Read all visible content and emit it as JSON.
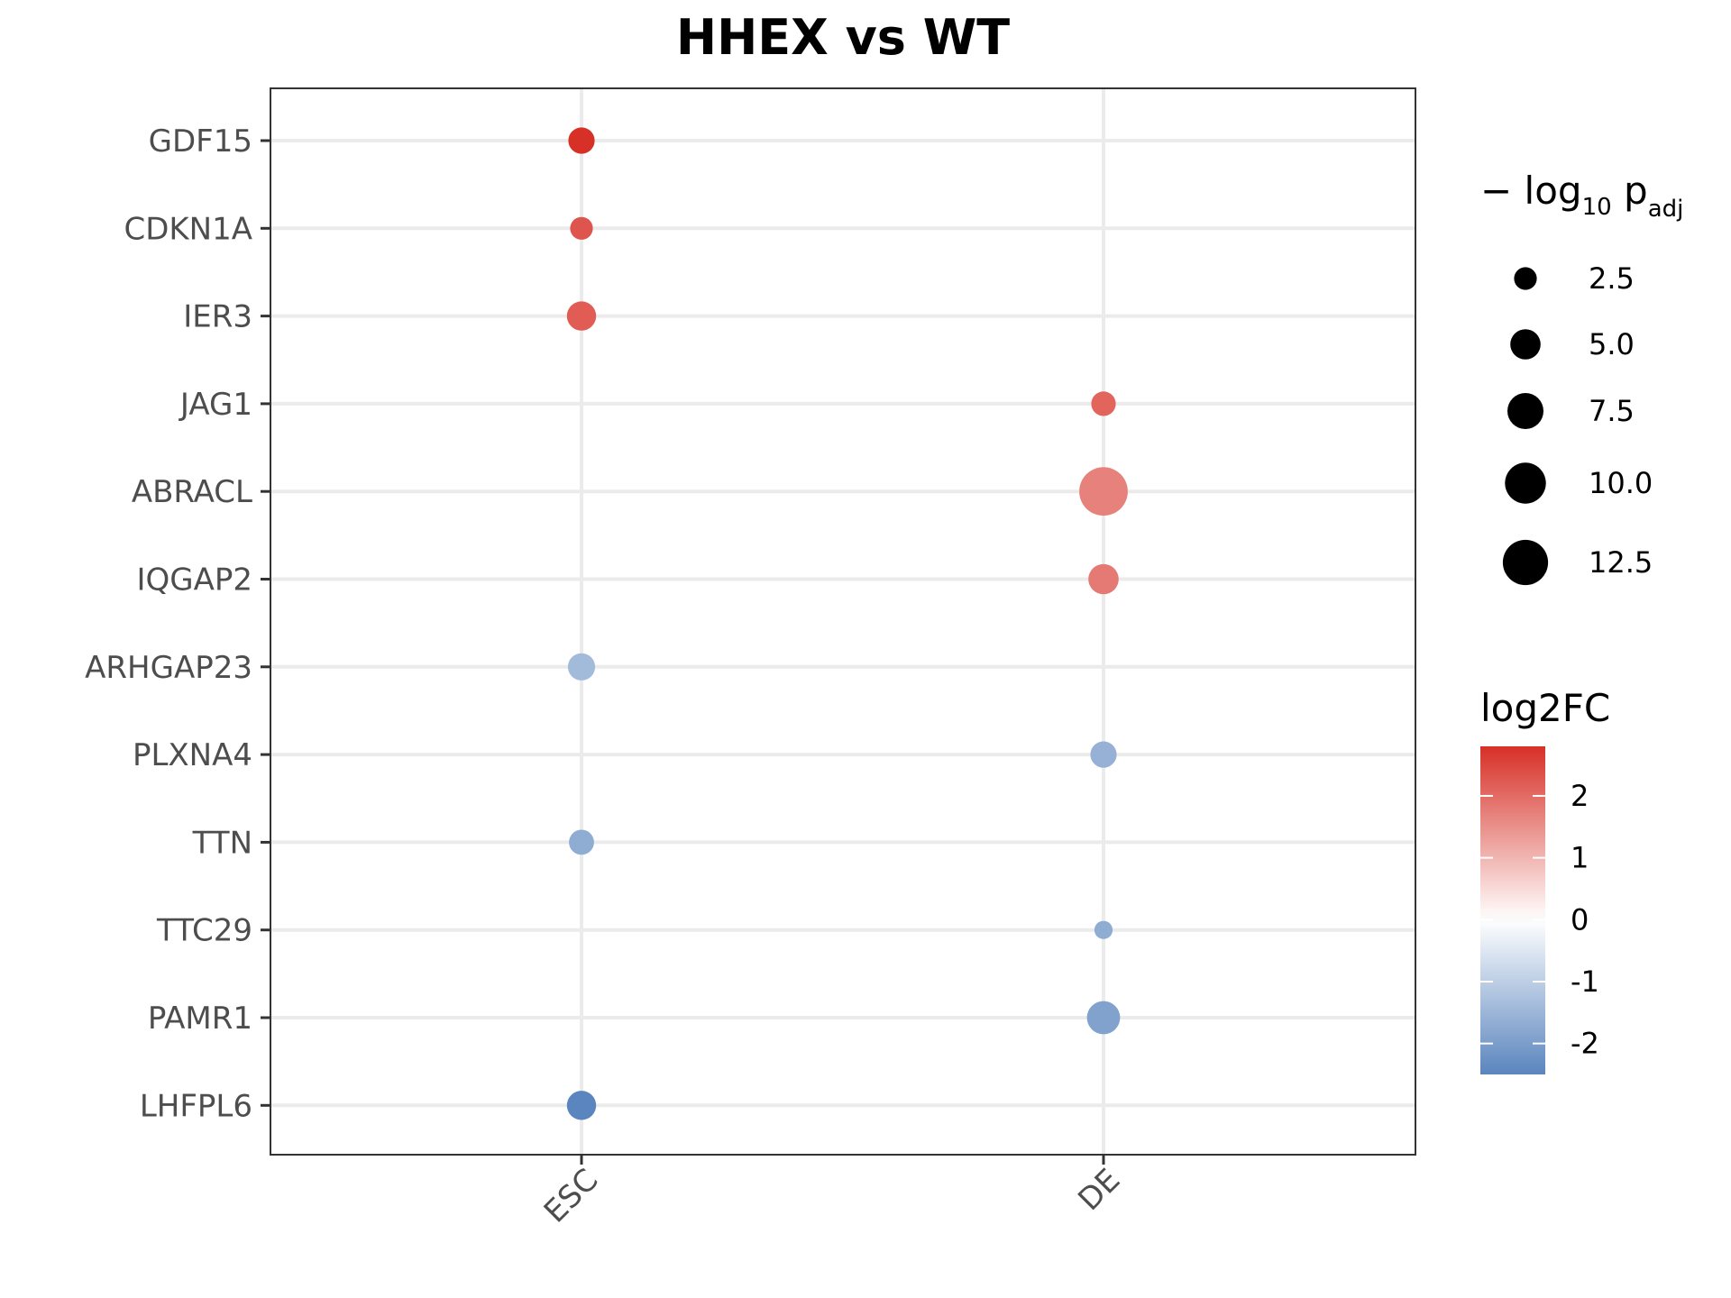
{
  "chart_data": {
    "type": "scatter",
    "title": "HHEX vs WT",
    "xlabel": "",
    "ylabel": "",
    "x_categories": [
      "ESC",
      "DE"
    ],
    "y_categories": [
      "GDF15",
      "CDKN1A",
      "IER3",
      "JAG1",
      "ABRACL",
      "IQGAP2",
      "ARHGAP23",
      "PLXNA4",
      "TTN",
      "TTC29",
      "PAMR1",
      "LHFPL6"
    ],
    "points": [
      {
        "gene": "GDF15",
        "condition": "ESC",
        "log2FC": 2.8,
        "neg_log10_padj": 3.6
      },
      {
        "gene": "CDKN1A",
        "condition": "ESC",
        "log2FC": 2.3,
        "neg_log10_padj": 2.5
      },
      {
        "gene": "IER3",
        "condition": "ESC",
        "log2FC": 2.2,
        "neg_log10_padj": 4.6
      },
      {
        "gene": "JAG1",
        "condition": "DE",
        "log2FC": 2.1,
        "neg_log10_padj": 3.0
      },
      {
        "gene": "ABRACL",
        "condition": "DE",
        "log2FC": 1.7,
        "neg_log10_padj": 14.5
      },
      {
        "gene": "IQGAP2",
        "condition": "DE",
        "log2FC": 1.8,
        "neg_log10_padj": 5.0
      },
      {
        "gene": "ARHGAP23",
        "condition": "ESC",
        "log2FC": -1.4,
        "neg_log10_padj": 3.9
      },
      {
        "gene": "PLXNA4",
        "condition": "DE",
        "log2FC": -1.6,
        "neg_log10_padj": 3.6
      },
      {
        "gene": "TTN",
        "condition": "ESC",
        "log2FC": -1.7,
        "neg_log10_padj": 3.2
      },
      {
        "gene": "TTC29",
        "condition": "DE",
        "log2FC": -1.7,
        "neg_log10_padj": 1.4
      },
      {
        "gene": "PAMR1",
        "condition": "DE",
        "log2FC": -1.9,
        "neg_log10_padj": 6.2
      },
      {
        "gene": "LHFPL6",
        "condition": "ESC",
        "log2FC": -2.5,
        "neg_log10_padj": 4.6
      }
    ],
    "size_legend": {
      "title_prefix": "− log",
      "title_base": "10",
      "title_var": " p",
      "title_sub": "adj",
      "breaks": [
        2.5,
        5.0,
        7.5,
        10.0,
        12.5
      ],
      "labels": [
        "2.5",
        "5.0",
        "7.5",
        "10.0",
        "12.5"
      ]
    },
    "color_legend": {
      "title": "log2FC",
      "breaks": [
        2,
        1,
        0,
        -1,
        -2
      ],
      "labels": [
        "2",
        "1",
        "0",
        "-1",
        "-2"
      ],
      "range": [
        -2.5,
        2.8
      ],
      "low_color": "#5b85be",
      "mid_color": "#ffffff",
      "high_color": "#d73027"
    },
    "colors": {
      "panel_border": "#333333",
      "grid": "#ebebeb",
      "tick_text": "#4d4d4d"
    },
    "legend_position": "right",
    "grid": true
  }
}
